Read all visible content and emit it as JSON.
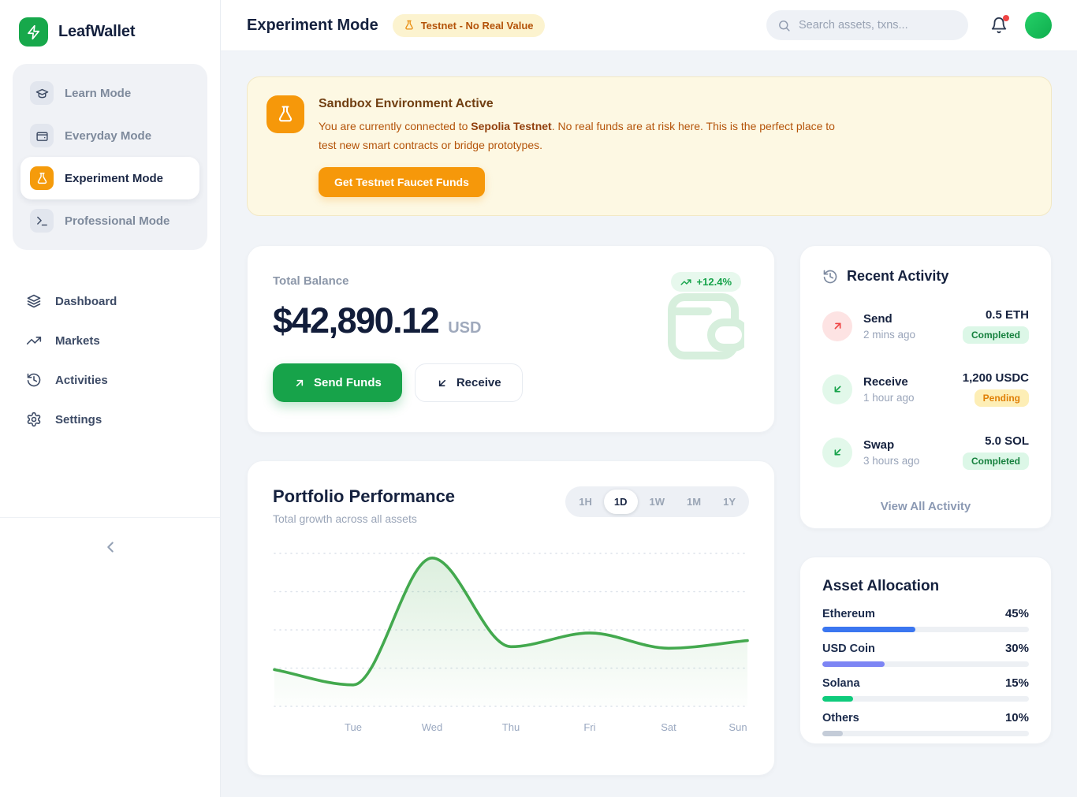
{
  "brand": {
    "name": "LeafWallet",
    "logo_icon": "lightning-bolt-icon",
    "color": "#17a84b"
  },
  "sidebar": {
    "modes": [
      {
        "label": "Learn Mode",
        "icon": "graduation-cap-icon",
        "active": false
      },
      {
        "label": "Everyday Mode",
        "icon": "wallet-icon",
        "active": false
      },
      {
        "label": "Experiment Mode",
        "icon": "flask-icon",
        "active": true
      },
      {
        "label": "Professional Mode",
        "icon": "terminal-icon",
        "active": false
      }
    ],
    "nav": [
      {
        "label": "Dashboard",
        "icon": "layers-icon"
      },
      {
        "label": "Markets",
        "icon": "trending-up-icon"
      },
      {
        "label": "Activities",
        "icon": "history-icon"
      },
      {
        "label": "Settings",
        "icon": "gear-icon"
      }
    ],
    "collapse_icon": "chevron-left-icon"
  },
  "header": {
    "title": "Experiment Mode",
    "badge": {
      "label": "Testnet - No Real Value",
      "icon": "flask-icon"
    },
    "search": {
      "placeholder": "Search assets, txns...",
      "icon": "search-icon"
    },
    "notifications": {
      "icon": "bell-icon",
      "unread_dot": true
    }
  },
  "banner": {
    "icon": "flask-icon",
    "title": "Sandbox Environment Active",
    "text_before": "You are currently connected to ",
    "network": "Sepolia Testnet",
    "text_after": ". No real funds are at risk here. This is the perfect place to test new smart contracts or bridge prototypes.",
    "button": "Get Testnet Faucet Funds"
  },
  "balance": {
    "label": "Total Balance",
    "amount": "$42,890.12",
    "currency": "USD",
    "change": "+12.4%",
    "send_button": "Send Funds",
    "receive_button": "Receive",
    "illustration": "wallet-icon"
  },
  "portfolio": {
    "title": "Portfolio Performance",
    "subtitle": "Total growth across all assets",
    "ranges": [
      "1H",
      "1D",
      "1W",
      "1M",
      "1Y"
    ],
    "active_range": "1D"
  },
  "chart_data": {
    "type": "area",
    "title": "Portfolio Performance",
    "x_labels": [
      "Tue",
      "Wed",
      "Thu",
      "Fri",
      "Sat",
      "Sun"
    ],
    "points": [
      {
        "label": "",
        "value": 24
      },
      {
        "label": "Tue",
        "value": 14
      },
      {
        "label": "Wed",
        "value": 97
      },
      {
        "label": "Thu",
        "value": 39
      },
      {
        "label": "Fri",
        "value": 48
      },
      {
        "label": "Sat",
        "value": 38
      },
      {
        "label": "Sun",
        "value": 43
      }
    ],
    "ylim": [
      0,
      100
    ],
    "gridline_count": 5,
    "grid": "horizontal-dotted",
    "legend": "none",
    "line_color": "#43a94e",
    "area_fill_top": "rgba(82,176,90,0.20)",
    "area_fill_bottom": "rgba(82,176,90,0.01)"
  },
  "activity": {
    "title": "Recent Activity",
    "header_icon": "history-icon",
    "items": [
      {
        "type": "Send",
        "time": "2 mins ago",
        "amount": "0.5 ETH",
        "status": "Completed",
        "status_class": "completed",
        "icon": "arrow-up-right-icon",
        "icon_color": "red"
      },
      {
        "type": "Receive",
        "time": "1 hour ago",
        "amount": "1,200 USDC",
        "status": "Pending",
        "status_class": "pending",
        "icon": "arrow-down-left-icon",
        "icon_color": "green"
      },
      {
        "type": "Swap",
        "time": "3 hours ago",
        "amount": "5.0 SOL",
        "status": "Completed",
        "status_class": "completed",
        "icon": "arrow-down-left-icon",
        "icon_color": "green"
      }
    ],
    "view_all": "View All Activity"
  },
  "allocation": {
    "title": "Asset Allocation",
    "items": [
      {
        "label": "Ethereum",
        "pct": 45,
        "pct_label": "45%",
        "color": "#3b76f0"
      },
      {
        "label": "USD Coin",
        "pct": 30,
        "pct_label": "30%",
        "color": "#7d85f4"
      },
      {
        "label": "Solana",
        "pct": 15,
        "pct_label": "15%",
        "color": "#0fcb7c"
      },
      {
        "label": "Others",
        "pct": 10,
        "pct_label": "10%",
        "color": "#c4ccd8"
      }
    ]
  }
}
